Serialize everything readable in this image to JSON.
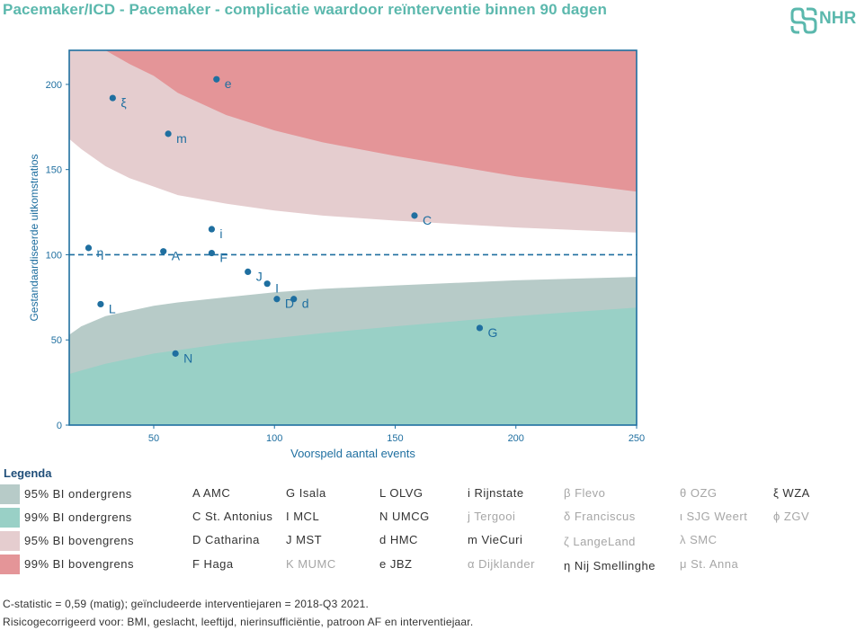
{
  "title": "Pacemaker/ICD - Pacemaker - complicatie waardoor reïnterventie binnen 90 dagen",
  "logo_text": "NHR",
  "colors": {
    "title": "#5bb8ad",
    "axis": "#1f6fa0",
    "ci95_lower": "#b7cbc8",
    "ci99_lower": "#99d0c6",
    "ci95_upper": "#e5cdcf",
    "ci99_upper": "#e49598",
    "point": "#1f6fa0",
    "active_legend_text": "#333333",
    "inactive_legend_text": "#a6a6a6"
  },
  "chart_data": {
    "type": "scatter",
    "xlabel": "Voorspeld aantal events",
    "ylabel": "Gestandaardiseerde uitkomstratios",
    "xlim": [
      15,
      250
    ],
    "ylim": [
      0,
      220
    ],
    "xticks": [
      50,
      100,
      150,
      200,
      250
    ],
    "yticks": [
      0,
      50,
      100,
      150,
      200
    ],
    "reference_line": 100,
    "bands": {
      "x": [
        15,
        20,
        30,
        40,
        50,
        60,
        80,
        100,
        120,
        150,
        200,
        250
      ],
      "ci99_lower": [
        30,
        32,
        36,
        39,
        42,
        44,
        48,
        51,
        54,
        58,
        64,
        69
      ],
      "ci95_lower": [
        53,
        58,
        64,
        67,
        70,
        72,
        75,
        78,
        80,
        82,
        85,
        87
      ],
      "ci95_upper": [
        168,
        162,
        152,
        145,
        140,
        135,
        130,
        126,
        123,
        120,
        116,
        113
      ],
      "ci99_upper": [
        240,
        232,
        220,
        212,
        205,
        195,
        182,
        173,
        166,
        158,
        146,
        137
      ]
    },
    "points": [
      {
        "label": "e",
        "x": 76,
        "y": 203
      },
      {
        "label": "ξ",
        "x": 33,
        "y": 192
      },
      {
        "label": "m",
        "x": 56,
        "y": 171
      },
      {
        "label": "C",
        "x": 158,
        "y": 123
      },
      {
        "label": "i",
        "x": 74,
        "y": 115
      },
      {
        "label": "η",
        "x": 23,
        "y": 104
      },
      {
        "label": "A",
        "x": 54,
        "y": 102
      },
      {
        "label": "F",
        "x": 74,
        "y": 101
      },
      {
        "label": "J",
        "x": 89,
        "y": 90
      },
      {
        "label": "I",
        "x": 97,
        "y": 83
      },
      {
        "label": "D",
        "x": 101,
        "y": 74
      },
      {
        "label": "d",
        "x": 108,
        "y": 74
      },
      {
        "label": "L",
        "x": 28,
        "y": 71
      },
      {
        "label": "G",
        "x": 185,
        "y": 57
      },
      {
        "label": "N",
        "x": 59,
        "y": 42
      }
    ]
  },
  "legend": {
    "heading": "Legenda",
    "bands": [
      {
        "label": "95% BI ondergrens",
        "color": "#b7cbc8"
      },
      {
        "label": "99% BI ondergrens",
        "color": "#99d0c6"
      },
      {
        "label": "95% BI bovengrens",
        "color": "#e5cdcf"
      },
      {
        "label": "99% BI bovengrens",
        "color": "#e49598"
      }
    ],
    "hospitals": [
      {
        "text": "A AMC",
        "active": true
      },
      {
        "text": "C St. Antonius",
        "active": true
      },
      {
        "text": "D Catharina",
        "active": true
      },
      {
        "text": "F Haga",
        "active": true
      },
      {
        "text": "G Isala",
        "active": true
      },
      {
        "text": "I MCL",
        "active": true
      },
      {
        "text": "J MST",
        "active": true
      },
      {
        "text": "K MUMC",
        "active": false
      },
      {
        "text": "L OLVG",
        "active": true
      },
      {
        "text": "N UMCG",
        "active": true
      },
      {
        "text": "d HMC",
        "active": true
      },
      {
        "text": "e JBZ",
        "active": true
      },
      {
        "text": "i Rijnstate",
        "active": true
      },
      {
        "text": "j Tergooi",
        "active": false
      },
      {
        "text": "m VieCuri",
        "active": true
      },
      {
        "text": "α Dijklander",
        "active": false
      },
      {
        "text": "β Flevo",
        "active": false
      },
      {
        "text": "δ Franciscus",
        "active": false
      },
      {
        "text": "ζ LangeLand",
        "active": false
      },
      {
        "text": "η Nij Smellinghe",
        "active": true
      },
      {
        "text": "θ OZG",
        "active": false
      },
      {
        "text": "ι SJG Weert",
        "active": false
      },
      {
        "text": "λ SMC",
        "active": false
      },
      {
        "text": "μ St. Anna",
        "active": false
      },
      {
        "text": "ξ WZA",
        "active": true
      },
      {
        "text": "ϕ ZGV",
        "active": false
      }
    ]
  },
  "footnotes": [
    "C-statistic = 0,59 (matig); geïncludeerde interventiejaren = 2018-Q3 2021.",
    "Risicogecorrigeerd voor: BMI, geslacht, leeftijd, nierinsufficiëntie, patroon AF en interventiejaar."
  ]
}
